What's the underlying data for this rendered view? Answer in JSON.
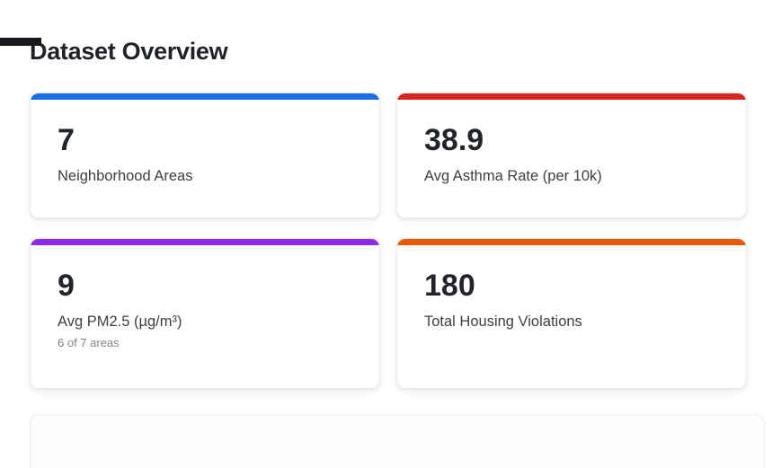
{
  "page": {
    "title": "Dataset Overview"
  },
  "stats": {
    "cards": [
      {
        "value": "7",
        "label": "Neighborhood Areas",
        "accent": "#1a6ee8"
      },
      {
        "value": "38.9",
        "label": "Avg Asthma Rate (per 10k)",
        "accent": "#d8261e"
      },
      {
        "value": "9",
        "label": "Avg PM2.5 (µg/m³)",
        "sublabel": "6 of 7 areas",
        "accent": "#9128e8"
      },
      {
        "value": "180",
        "label": "Total Housing Violations",
        "accent": "#ea580c"
      }
    ]
  }
}
